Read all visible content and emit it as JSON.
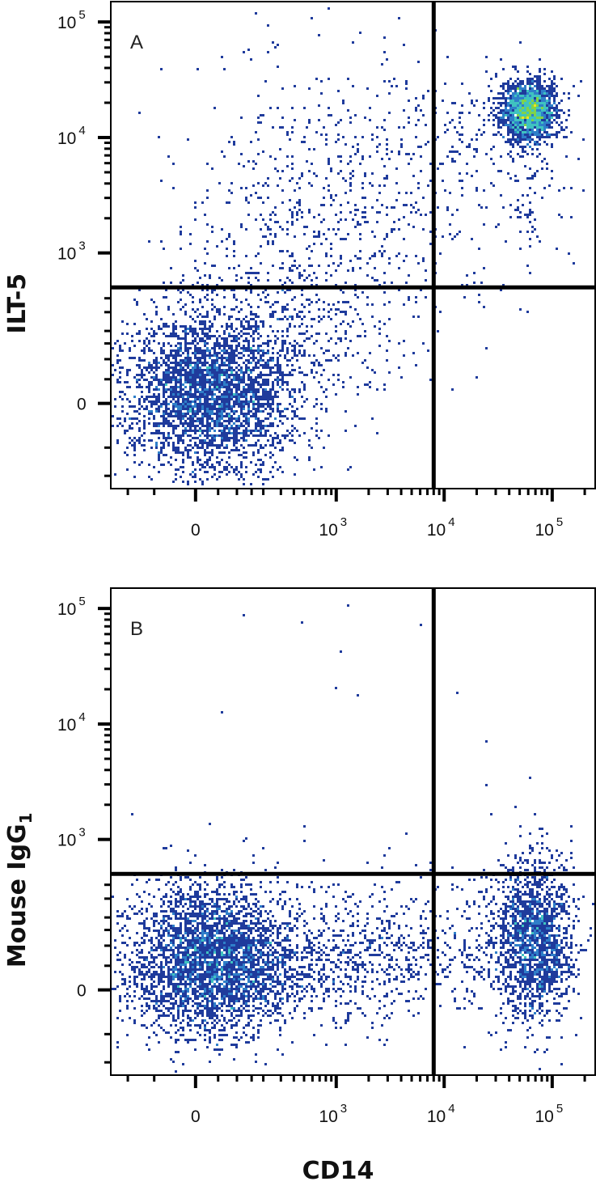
{
  "figure": {
    "xlabel": "CD14",
    "colors": {
      "frame": "#000000",
      "gate": "#000000",
      "density_low": "#1f3b9c",
      "density_mid_low": "#2f7fc9",
      "density_mid": "#3fc3c0",
      "density_mid_high": "#7fd34a",
      "density_high": "#f2e21f",
      "density_peak": "#e8251f"
    }
  },
  "chart_data": [
    {
      "type": "scatter",
      "subtype": "flow-cytometry-density-plot",
      "panel": "A",
      "ylabel": "ILT-5",
      "ylabel_subscript": "",
      "x_scale": "biexponential",
      "y_scale": "biexponential",
      "xlim": [
        -400,
        250000
      ],
      "ylim": [
        -400,
        150000
      ],
      "x_ticks": [
        {
          "value": 0,
          "base": "",
          "exp": "",
          "text": "0"
        },
        {
          "value": 1000,
          "base": "10",
          "exp": "3",
          "text": ""
        },
        {
          "value": 10000,
          "base": "10",
          "exp": "4",
          "text": ""
        },
        {
          "value": 100000,
          "base": "10",
          "exp": "5",
          "text": ""
        }
      ],
      "y_ticks": [
        {
          "value": 0,
          "base": "",
          "exp": "",
          "text": "0"
        },
        {
          "value": 1000,
          "base": "10",
          "exp": "3",
          "text": ""
        },
        {
          "value": 10000,
          "base": "10",
          "exp": "4",
          "text": ""
        },
        {
          "value": 100000,
          "base": "10",
          "exp": "5",
          "text": ""
        }
      ],
      "quadrant_gate": {
        "x": 8000,
        "y": 500
      },
      "populations": [
        {
          "x": 30,
          "y": 20,
          "sx": 0.55,
          "sy": 0.5,
          "count": 3300,
          "density": "high"
        },
        {
          "x": 400,
          "y": 250,
          "sx": 0.75,
          "sy": 0.7,
          "count": 600,
          "density": "low"
        },
        {
          "x": 1200,
          "y": 3500,
          "sx": 1.1,
          "sy": 0.9,
          "count": 650,
          "density": "low"
        },
        {
          "x": 60000,
          "y": 17000,
          "sx": 0.18,
          "sy": 0.18,
          "count": 1900,
          "density": "high"
        },
        {
          "x": 25000,
          "y": 12000,
          "sx": 0.6,
          "sy": 0.35,
          "count": 150,
          "density": "low"
        },
        {
          "x": 60000,
          "y": 3000,
          "sx": 0.25,
          "sy": 0.55,
          "count": 90,
          "density": "low"
        }
      ]
    },
    {
      "type": "scatter",
      "subtype": "flow-cytometry-density-plot",
      "panel": "B",
      "ylabel": "Mouse IgG",
      "ylabel_subscript": "1",
      "x_scale": "biexponential",
      "y_scale": "biexponential",
      "xlim": [
        -400,
        250000
      ],
      "ylim": [
        -400,
        150000
      ],
      "x_ticks": [
        {
          "value": 0,
          "base": "",
          "exp": "",
          "text": "0"
        },
        {
          "value": 1000,
          "base": "10",
          "exp": "3",
          "text": ""
        },
        {
          "value": 10000,
          "base": "10",
          "exp": "4",
          "text": ""
        },
        {
          "value": 100000,
          "base": "10",
          "exp": "5",
          "text": ""
        }
      ],
      "y_ticks": [
        {
          "value": 0,
          "base": "",
          "exp": "",
          "text": "0"
        },
        {
          "value": 1000,
          "base": "10",
          "exp": "3",
          "text": ""
        },
        {
          "value": 10000,
          "base": "10",
          "exp": "4",
          "text": ""
        },
        {
          "value": 100000,
          "base": "10",
          "exp": "5",
          "text": ""
        }
      ],
      "quadrant_gate": {
        "x": 8000,
        "y": 500
      },
      "populations": [
        {
          "x": 30,
          "y": 60,
          "sx": 0.55,
          "sy": 0.45,
          "count": 3300,
          "density": "high"
        },
        {
          "x": 500,
          "y": 80,
          "sx": 0.8,
          "sy": 0.45,
          "count": 700,
          "density": "low"
        },
        {
          "x": 3000,
          "y": 80,
          "sx": 0.6,
          "sy": 0.4,
          "count": 250,
          "density": "low"
        },
        {
          "x": 70000,
          "y": 120,
          "sx": 0.25,
          "sy": 0.5,
          "count": 1700,
          "density": "mid"
        },
        {
          "x": 25000,
          "y": 100,
          "sx": 0.5,
          "sy": 0.45,
          "count": 250,
          "density": "low"
        },
        {
          "x": 1500,
          "y": 5000,
          "sx": 1.5,
          "sy": 1.5,
          "count": 22,
          "density": "low"
        }
      ]
    }
  ]
}
